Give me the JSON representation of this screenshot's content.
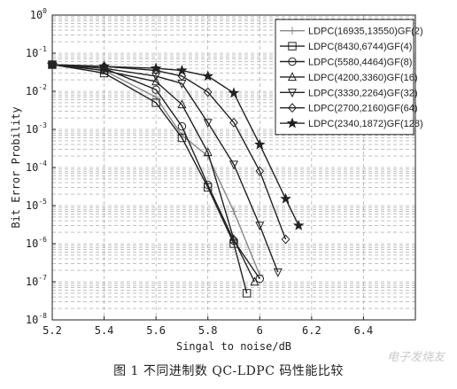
{
  "chart_data": {
    "type": "line",
    "title": "",
    "xlabel": "Singal to noise/dB",
    "ylabel": "Bit Error Probility",
    "xlim": [
      5.2,
      6.6
    ],
    "ylim_log10": [
      -8,
      0
    ],
    "yscale": "log",
    "grid": true,
    "legend_position": "top-right",
    "x_ticks": [
      "5.2",
      "5.4",
      "5.6",
      "5.8",
      "6",
      "6.2",
      "6.4"
    ],
    "x_tick_values": [
      5.2,
      5.4,
      5.6,
      5.8,
      6.0,
      6.2,
      6.4
    ],
    "y_tick_exponents": [
      0,
      -1,
      -2,
      -3,
      -4,
      -5,
      -6,
      -7,
      -8
    ],
    "series": [
      {
        "name": "LDPC(16935,13550)GF(2)",
        "marker": "plus",
        "color": "#888888",
        "x": [
          5.2,
          5.4,
          5.6,
          5.7,
          5.8,
          5.9,
          6.0
        ],
        "y": [
          0.05,
          0.035,
          0.007,
          0.0007,
          0.0002,
          7e-06,
          1.5e-07
        ]
      },
      {
        "name": "LDPC(8430,6744)GF(4)",
        "marker": "square",
        "color": "#222222",
        "x": [
          5.2,
          5.4,
          5.6,
          5.7,
          5.8,
          5.9,
          5.95
        ],
        "y": [
          0.05,
          0.03,
          0.005,
          0.0006,
          3e-05,
          1e-06,
          5e-08
        ]
      },
      {
        "name": "LDPC(5580,4464)GF(8)",
        "marker": "circle",
        "color": "#222222",
        "x": [
          5.2,
          5.4,
          5.6,
          5.7,
          5.8,
          5.9,
          6.0
        ],
        "y": [
          0.05,
          0.04,
          0.011,
          0.0012,
          3.5e-05,
          1.2e-06,
          1.2e-07
        ]
      },
      {
        "name": "LDPC(4200,3360)GF(16)",
        "marker": "triangle-up",
        "color": "#222222",
        "x": [
          5.2,
          5.4,
          5.6,
          5.7,
          5.8,
          5.9,
          5.98
        ],
        "y": [
          0.05,
          0.035,
          0.018,
          0.0045,
          0.00025,
          1.3e-06,
          1e-07
        ]
      },
      {
        "name": "LDPC(3330,2264)GF(32)",
        "marker": "triangle-down",
        "color": "#222222",
        "x": [
          5.2,
          5.4,
          5.6,
          5.7,
          5.8,
          5.9,
          6.0,
          6.07
        ],
        "y": [
          0.05,
          0.04,
          0.025,
          0.016,
          0.0015,
          0.00012,
          3e-06,
          1.8e-07
        ]
      },
      {
        "name": "LDPC(2700,2160)GF(64)",
        "marker": "diamond",
        "color": "#222222",
        "x": [
          5.2,
          5.4,
          5.6,
          5.7,
          5.8,
          5.9,
          6.0,
          6.1
        ],
        "y": [
          0.05,
          0.045,
          0.035,
          0.025,
          0.0095,
          0.0015,
          8e-05,
          1.3e-06
        ]
      },
      {
        "name": "LDPC(2340,1872)GF(128)",
        "marker": "star",
        "color": "#222222",
        "x": [
          5.2,
          5.4,
          5.6,
          5.7,
          5.8,
          5.9,
          6.0,
          6.1,
          6.15
        ],
        "y": [
          0.05,
          0.045,
          0.04,
          0.035,
          0.025,
          0.009,
          0.0004,
          1.5e-05,
          3e-06
        ]
      }
    ]
  },
  "caption": "图 1   不同进制数 QC-LDPC 码性能比较",
  "watermark": "电子发烧友"
}
